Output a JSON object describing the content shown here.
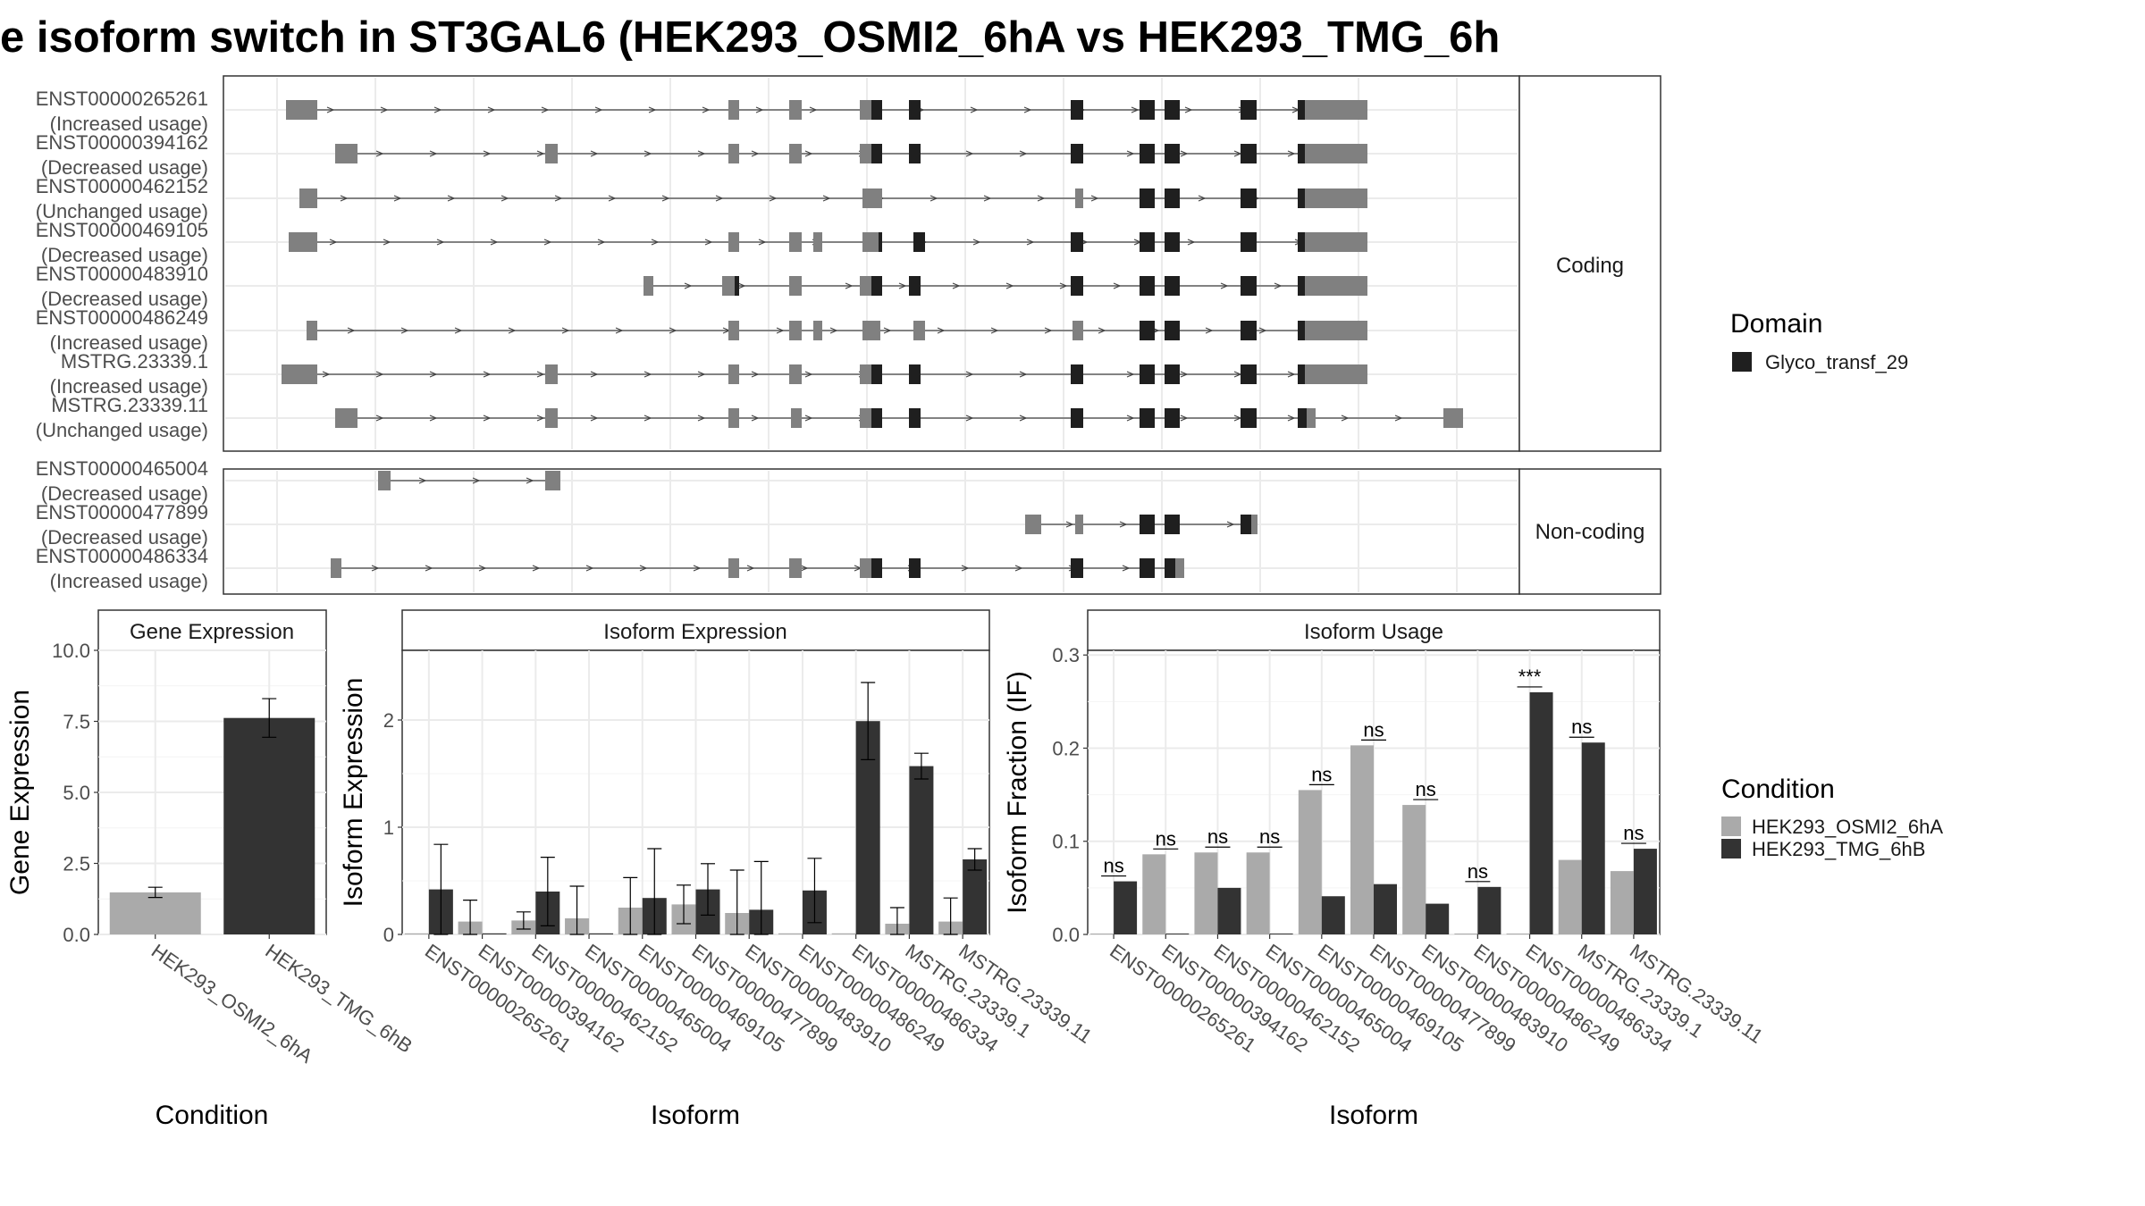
{
  "title": "e isoform switch in ST3GAL6 (HEK293_OSMI2_6hA vs HEK293_TMG_6h",
  "colors": {
    "osmi": "#aaaaaa",
    "tmg": "#333333",
    "exon_gray": "#808080",
    "domain": "#1f1f1f",
    "grid": "#ebebeb",
    "strip_bg": "#ffffff",
    "panel_border": "#333333"
  },
  "structure": {
    "panels": [
      {
        "label": "Coding",
        "tracks": [
          {
            "id": "ENST00000265261",
            "status": "(Increased usage)"
          },
          {
            "id": "ENST00000394162",
            "status": "(Decreased usage)"
          },
          {
            "id": "ENST00000462152",
            "status": "(Unchanged usage)"
          },
          {
            "id": "ENST00000469105",
            "status": "(Decreased usage)"
          },
          {
            "id": "ENST00000483910",
            "status": "(Decreased usage)"
          },
          {
            "id": "ENST00000486249",
            "status": "(Increased usage)"
          },
          {
            "id": "MSTRG.23339.1",
            "status": "(Increased usage)"
          },
          {
            "id": "MSTRG.23339.11",
            "status": "(Unchanged usage)"
          }
        ]
      },
      {
        "label": "Non-coding",
        "tracks": [
          {
            "id": "ENST00000465004",
            "status": "(Decreased usage)"
          },
          {
            "id": "ENST00000477899",
            "status": "(Decreased usage)"
          },
          {
            "id": "ENST00000486334",
            "status": "(Increased usage)"
          }
        ]
      }
    ]
  },
  "legend_domain": {
    "title": "Domain",
    "items": [
      {
        "name": "Glyco_transf_29",
        "color": "#1f1f1f"
      }
    ]
  },
  "legend_condition": {
    "title": "Condition",
    "items": [
      {
        "name": "HEK293_OSMI2_6hA",
        "color": "#aaaaaa"
      },
      {
        "name": "HEK293_TMG_6hB",
        "color": "#333333"
      }
    ]
  },
  "chart_data": [
    {
      "type": "bar",
      "title": "Gene Expression",
      "xlabel": "Condition",
      "ylabel": "Gene Expression",
      "categories": [
        "HEK293_OSMI2_6hA",
        "HEK293_TMG_6hB"
      ],
      "values": [
        1.48,
        7.62
      ],
      "errors": [
        0.18,
        0.68
      ],
      "ylim": [
        0,
        10
      ],
      "yticks": [
        "0.0",
        "2.5",
        "5.0",
        "7.5",
        "10.0"
      ]
    },
    {
      "type": "bar",
      "title": "Isoform Expression",
      "xlabel": "Isoform",
      "ylabel": "Isoform Expression",
      "categories": [
        "ENST00000265261",
        "ENST00000394162",
        "ENST00000462152",
        "ENST00000465004",
        "ENST00000469105",
        "ENST00000477899",
        "ENST00000483910",
        "ENST00000486249",
        "ENST00000486334",
        "MSTRG.23339.1",
        "MSTRG.23339.11"
      ],
      "ylim": [
        0,
        2.65
      ],
      "yticks": [
        "0",
        "1",
        "2"
      ],
      "series": [
        {
          "name": "HEK293_OSMI2_6hA",
          "values": [
            0.01,
            0.12,
            0.13,
            0.15,
            0.25,
            0.28,
            0.2,
            0.01,
            0.01,
            0.1,
            0.12
          ],
          "errors": [
            0,
            0.2,
            0.08,
            0.3,
            0.28,
            0.18,
            0.4,
            0,
            0,
            0.15,
            0.22
          ]
        },
        {
          "name": "HEK293_TMG_6hB",
          "values": [
            0.42,
            0.01,
            0.4,
            0.01,
            0.34,
            0.42,
            0.23,
            0.41,
            1.99,
            1.57,
            0.7
          ],
          "errors": [
            0.42,
            0,
            0.32,
            0,
            0.46,
            0.24,
            0.45,
            0.3,
            0.36,
            0.12,
            0.1
          ]
        }
      ]
    },
    {
      "type": "bar",
      "title": "Isoform Usage",
      "xlabel": "Isoform",
      "ylabel": "Isoform Fraction (IF)",
      "categories": [
        "ENST00000265261",
        "ENST00000394162",
        "ENST00000462152",
        "ENST00000465004",
        "ENST00000469105",
        "ENST00000477899",
        "ENST00000483910",
        "ENST00000486249",
        "ENST00000486334",
        "MSTRG.23339.1",
        "MSTRG.23339.11"
      ],
      "ylim": [
        0,
        0.305
      ],
      "yticks": [
        "0.0",
        "0.1",
        "0.2",
        "0.3"
      ],
      "series": [
        {
          "name": "HEK293_OSMI2_6hA",
          "values": [
            0.0,
            0.086,
            0.088,
            0.088,
            0.155,
            0.203,
            0.139,
            0.0,
            0.0,
            0.08,
            0.068
          ]
        },
        {
          "name": "HEK293_TMG_6hB",
          "values": [
            0.057,
            0.0,
            0.05,
            0.0,
            0.041,
            0.054,
            0.033,
            0.051,
            0.26,
            0.206,
            0.092
          ]
        }
      ],
      "annotations": [
        "ns",
        "ns",
        "ns",
        "ns",
        "ns",
        "ns",
        "ns",
        "ns",
        "***",
        "ns",
        "ns"
      ]
    }
  ]
}
